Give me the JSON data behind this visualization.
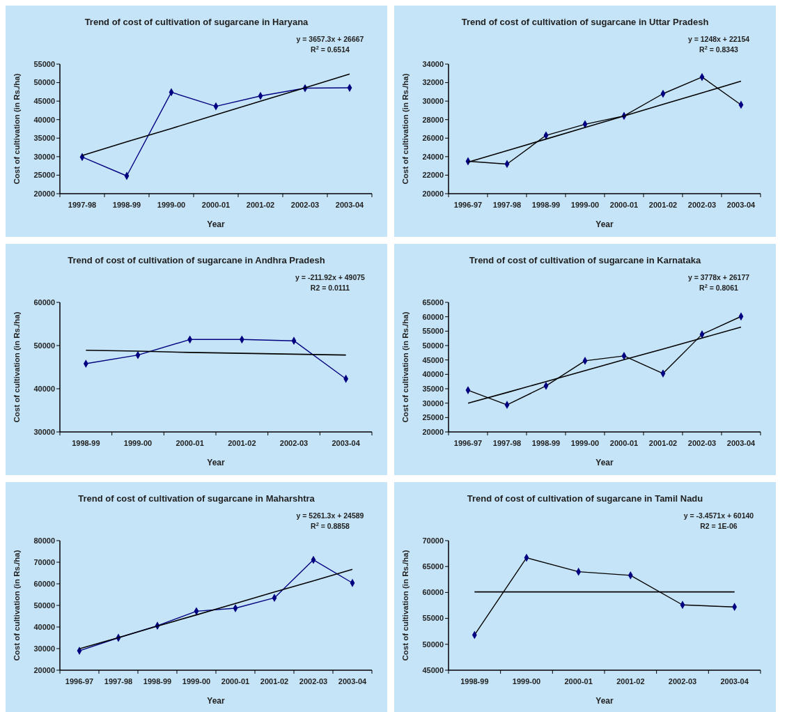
{
  "chart_data": [
    {
      "type": "line",
      "title": "Trend of cost of cultivation of sugarcane in Haryana",
      "xlabel": "Year",
      "ylabel": "Cost of cultivation (in Rs./ha)",
      "categories": [
        "1997-98",
        "1998-99",
        "1999-00",
        "2000-01",
        "2001-02",
        "2002-03",
        "2003-04"
      ],
      "ylim": [
        20000,
        55000
      ],
      "yticks": [
        20000,
        25000,
        30000,
        35000,
        40000,
        45000,
        50000,
        55000
      ],
      "marker": "diamond",
      "annotations": [
        "y = 3657.3x + 26667",
        "R$^{2}$ = 0.6514"
      ],
      "series": [
        {
          "color": "#000080",
          "values": [
            29900,
            24800,
            47400,
            43600,
            46400,
            48500,
            48600
          ]
        },
        {
          "type": "line",
          "marker": "none",
          "color": "#000000",
          "values": [
            30300,
            34000,
            37600,
            41300,
            45000,
            48600,
            52300
          ]
        }
      ]
    },
    {
      "type": "line",
      "title": "Trend of cost of cultivation of sugarcane in Uttar Pradesh",
      "xlabel": "Year",
      "ylabel": "Cost of cultivation (in Rs./ha)",
      "categories": [
        "1996-97",
        "1997-98",
        "1998-99",
        "1999-00",
        "2000-01",
        "2001-02",
        "2002-03",
        "2003-04"
      ],
      "ylim": [
        20000,
        34000
      ],
      "yticks": [
        20000,
        22000,
        24000,
        26000,
        28000,
        30000,
        32000,
        34000
      ],
      "marker": "diamond",
      "annotations": [
        "y = 1248x + 22154",
        "R$^{2}$ = 0.8343"
      ],
      "series": [
        {
          "color": "#000000",
          "values": [
            23500,
            23200,
            26300,
            27500,
            28400,
            30800,
            32600,
            29600
          ]
        },
        {
          "type": "line",
          "marker": "none",
          "color": "#000000",
          "values": [
            23400,
            24650,
            25900,
            27150,
            28400,
            29650,
            30900,
            32150
          ]
        }
      ]
    },
    {
      "type": "line",
      "title": "Trend  of cost of cultivation of sugarcane in Andhra Pradesh",
      "xlabel": "Year",
      "ylabel": "Cost of cultivation (in Rs./ha)",
      "categories": [
        "1998-99",
        "1999-00",
        "2000-01",
        "2001-02",
        "2002-03",
        "2003-04"
      ],
      "ylim": [
        30000,
        60000
      ],
      "yticks": [
        30000,
        40000,
        50000,
        60000
      ],
      "marker": "diamond",
      "annotations": [
        "y = -211.92x + 49075",
        "R2 = 0.0111"
      ],
      "series": [
        {
          "color": "#000080",
          "values": [
            45800,
            47800,
            51400,
            51400,
            51100,
            42300
          ]
        },
        {
          "type": "line",
          "marker": "none",
          "color": "#000000",
          "values": [
            48900,
            48700,
            48400,
            48200,
            48000,
            47800
          ]
        }
      ]
    },
    {
      "type": "line",
      "title": "Trend of cost of cultivation of sugarcane in Karnataka",
      "xlabel": "Year",
      "ylabel": "Cost of cultivation (in Rs./ha)",
      "categories": [
        "1996-97",
        "1997-98",
        "1998-99",
        "1999-00",
        "2000-01",
        "2001-02",
        "2002-03",
        "2003-04"
      ],
      "ylim": [
        20000,
        65000
      ],
      "yticks": [
        20000,
        25000,
        30000,
        35000,
        40000,
        45000,
        50000,
        55000,
        60000,
        65000
      ],
      "marker": "diamond",
      "annotations": [
        "y = 3778x + 26177",
        "R$^{2}$ = 0.8061"
      ],
      "series": [
        {
          "color": "#000000",
          "values": [
            34500,
            29400,
            36000,
            44700,
            46400,
            40300,
            53900,
            60100
          ]
        },
        {
          "type": "line",
          "marker": "none",
          "color": "#000000",
          "values": [
            30000,
            33700,
            37500,
            41300,
            45100,
            48800,
            52600,
            56400
          ]
        }
      ]
    },
    {
      "type": "line",
      "title": "Trend of cost of cultivation of sugarcane in Maharshtra",
      "xlabel": "Year",
      "ylabel": "Cost of cultivation (in Rs./ha)",
      "categories": [
        "1996-97",
        "1997-98",
        "1998-99",
        "1999-00",
        "2000-01",
        "2001-02",
        "2002-03",
        "2003-04"
      ],
      "ylim": [
        20000,
        80000
      ],
      "yticks": [
        20000,
        30000,
        40000,
        50000,
        60000,
        70000,
        80000
      ],
      "marker": "diamond",
      "annotations": [
        "y = 5261.3x + 24589",
        "R$^{2}$ = 0.8858"
      ],
      "series": [
        {
          "color": "#000080",
          "values": [
            29000,
            35000,
            40600,
            47300,
            48700,
            53500,
            71100,
            60400
          ]
        },
        {
          "type": "line",
          "marker": "none",
          "color": "#000000",
          "values": [
            29900,
            35100,
            40400,
            45600,
            50900,
            56200,
            61400,
            66700
          ]
        }
      ]
    },
    {
      "type": "line",
      "title": "Trend of cost of cultivation of  sugarcane in Tamil Nadu",
      "xlabel": "Year",
      "ylabel": "Cost of cultivation (in Rs./ha)",
      "categories": [
        "1998-99",
        "1999-00",
        "2000-01",
        "2001-02",
        "2002-03",
        "2003-04"
      ],
      "ylim": [
        45000,
        70000
      ],
      "yticks": [
        45000,
        50000,
        55000,
        60000,
        65000,
        70000
      ],
      "marker": "diamond",
      "annotations": [
        "y = -3.4571x + 60140",
        "R2 = 1E-06"
      ],
      "series": [
        {
          "color": "#000000",
          "values": [
            51800,
            66700,
            64000,
            63300,
            57600,
            57200
          ]
        },
        {
          "type": "line",
          "marker": "none",
          "color": "#000000",
          "values": [
            60100,
            60100,
            60100,
            60100,
            60100,
            60100
          ]
        }
      ]
    }
  ]
}
